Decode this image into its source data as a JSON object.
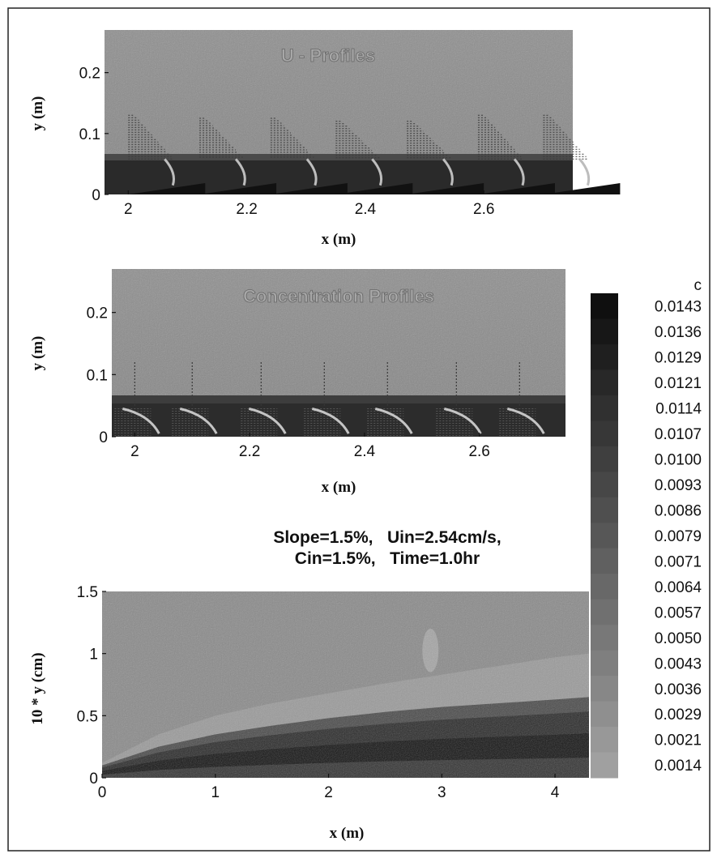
{
  "chart_data": [
    {
      "type": "line",
      "title": "U - Profiles",
      "xlabel": "x (m)",
      "ylabel": "y (m)",
      "xlim": [
        1.96,
        2.75
      ],
      "ylim": [
        0,
        0.27
      ],
      "x_ticks": [
        "2",
        "2.2",
        "2.4",
        "2.6"
      ],
      "y_ticks": [
        "0",
        "0.1",
        "0.2"
      ],
      "profile_stations_x": [
        2.0,
        2.12,
        2.24,
        2.35,
        2.47,
        2.59,
        2.7
      ],
      "profile_height_y": [
        0.13,
        0.125,
        0.125,
        0.12,
        0.12,
        0.13,
        0.13
      ],
      "interface_band_y": [
        0.03,
        0.06
      ],
      "grid": false
    },
    {
      "type": "line",
      "title": "Concentration Profiles",
      "xlabel": "x (m)",
      "ylabel": "y (m)",
      "xlim": [
        1.96,
        2.75
      ],
      "ylim": [
        0,
        0.27
      ],
      "x_ticks": [
        "2",
        "2.2",
        "2.4",
        "2.6"
      ],
      "y_ticks": [
        "0",
        "0.1",
        "0.2"
      ],
      "profile_stations_x": [
        2.0,
        2.1,
        2.22,
        2.33,
        2.44,
        2.56,
        2.67
      ],
      "interface_band_y": [
        0.02,
        0.05
      ],
      "grid": false
    },
    {
      "type": "heatmap",
      "subtitle_line1": "Slope=1.5%,   Uin=2.54cm/s,",
      "subtitle_line2": "Cin=1.5%,   Time=1.0hr",
      "xlabel": "x (m)",
      "ylabel": "10 * y (cm)",
      "xlim": [
        0,
        4.3
      ],
      "ylim": [
        0,
        1.5
      ],
      "x_ticks": [
        "0",
        "1",
        "2",
        "3",
        "4"
      ],
      "y_ticks": [
        "0",
        "0.5",
        "1",
        "1.5"
      ],
      "colorbar": {
        "label": "c",
        "position": "right",
        "levels": [
          "0.0143",
          "0.0136",
          "0.0129",
          "0.0121",
          "0.0114",
          "0.0107",
          "0.0100",
          "0.0093",
          "0.0086",
          "0.0079",
          "0.0071",
          "0.0064",
          "0.0057",
          "0.0050",
          "0.0043",
          "0.0036",
          "0.0029",
          "0.0021",
          "0.0014"
        ]
      },
      "current_top_x": [
        0,
        0.5,
        1,
        1.5,
        2,
        2.5,
        3,
        3.5,
        4,
        4.3
      ],
      "current_top_y": [
        0.1,
        0.25,
        0.35,
        0.42,
        0.48,
        0.53,
        0.57,
        0.6,
        0.63,
        0.65
      ],
      "outer_boundary_y": [
        0.12,
        0.35,
        0.5,
        0.6,
        0.68,
        0.76,
        0.83,
        0.9,
        0.97,
        1.0
      ],
      "plume_x": 2.9,
      "plume_y": [
        0.85,
        1.2
      ]
    }
  ]
}
